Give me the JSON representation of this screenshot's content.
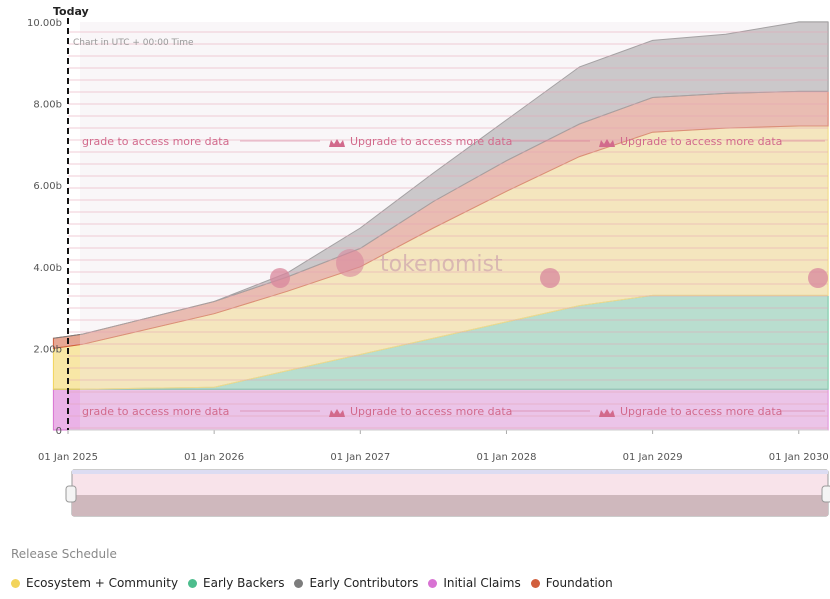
{
  "chart_data": {
    "type": "area",
    "stacked": true,
    "title": "",
    "today_label": "Today",
    "utc_note": "Chart in UTC + 00:00 Time",
    "y_ticks": [
      "0",
      "2.00b",
      "4.00b",
      "6.00b",
      "8.00b",
      "10.00b"
    ],
    "y_tick_values": [
      0,
      2,
      4,
      6,
      8,
      10
    ],
    "ylim": [
      0,
      10
    ],
    "xlim": [
      2025.0,
      2030.2
    ],
    "x_ticks": [
      "01 Jan 2025",
      "01 Jan 2026",
      "01 Jan 2027",
      "01 Jan 2028",
      "01 Jan 2029",
      "01 Jan 2030"
    ],
    "x_tick_values": [
      2025,
      2026,
      2027,
      2028,
      2029,
      2030
    ],
    "today": 2025.0,
    "x": [
      2024.9,
      2025.0,
      2025.1,
      2026.0,
      2026.5,
      2027.0,
      2027.5,
      2028.0,
      2028.5,
      2029.0,
      2029.5,
      2030.0,
      2030.2
    ],
    "series": [
      {
        "name": "Initial Claims",
        "color": "#d873d3",
        "values": [
          1.0,
          1.0,
          1.0,
          1.0,
          1.0,
          1.0,
          1.0,
          1.0,
          1.0,
          1.0,
          1.0,
          1.0,
          1.0
        ]
      },
      {
        "name": "Early Backers",
        "color": "#4dbd8d",
        "values": [
          0,
          0,
          0,
          0.05,
          0.45,
          0.85,
          1.25,
          1.65,
          2.05,
          2.3,
          2.3,
          2.3,
          2.3
        ]
      },
      {
        "name": "Ecosystem + Community",
        "color": "#f2d45c",
        "values": [
          1.0,
          1.05,
          1.1,
          1.8,
          1.95,
          2.15,
          2.7,
          3.2,
          3.65,
          4.0,
          4.1,
          4.15,
          4.15
        ]
      },
      {
        "name": "Foundation",
        "color": "#d15f3d",
        "values": [
          0.25,
          0.25,
          0.25,
          0.3,
          0.35,
          0.45,
          0.65,
          0.75,
          0.8,
          0.85,
          0.85,
          0.85,
          0.85
        ]
      },
      {
        "name": "Early Contributors",
        "color": "#7d7d7d",
        "values": [
          0,
          0,
          0,
          0,
          0.1,
          0.5,
          0.7,
          1.0,
          1.4,
          1.4,
          1.45,
          1.7,
          1.7
        ]
      }
    ],
    "grid": true,
    "legend": "bottom-left"
  },
  "overlay": {
    "upgrade_text": "Upgrade to access more data",
    "upgrade_top_1": "grade to access more data",
    "watermark": "tokenomist"
  },
  "release_title": "Release Schedule",
  "legend": [
    {
      "label": "Ecosystem + Community",
      "color": "#f2d45c"
    },
    {
      "label": "Early Backers",
      "color": "#4dbd8d"
    },
    {
      "label": "Early Contributors",
      "color": "#7d7d7d"
    },
    {
      "label": "Initial Claims",
      "color": "#d873d3"
    },
    {
      "label": "Foundation",
      "color": "#d15f3d"
    }
  ]
}
